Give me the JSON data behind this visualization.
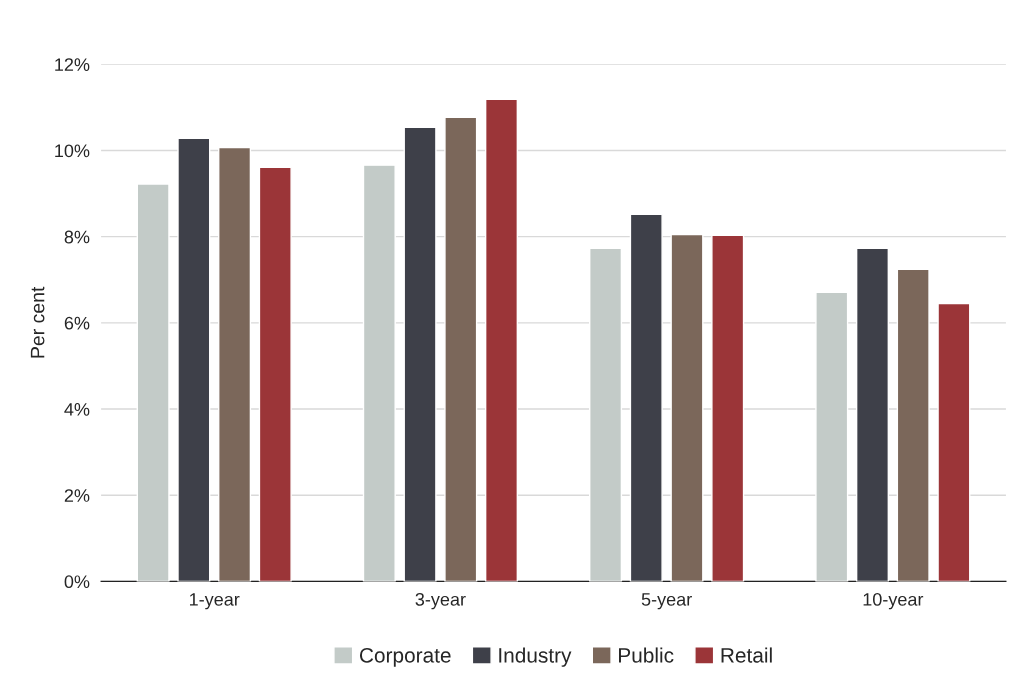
{
  "chart_data": {
    "type": "bar",
    "ylabel": "Per cent",
    "categories": [
      "1-year",
      "3-year",
      "5-year",
      "10-year"
    ],
    "series": [
      {
        "name": "Corporate",
        "color": "#c3cbc8",
        "values": [
          9.22,
          9.66,
          7.73,
          6.71
        ]
      },
      {
        "name": "Industry",
        "color": "#3e4049",
        "values": [
          10.28,
          10.54,
          8.52,
          7.73
        ]
      },
      {
        "name": "Public",
        "color": "#7b675a",
        "values": [
          10.07,
          10.77,
          8.05,
          7.24
        ]
      },
      {
        "name": "Retail",
        "color": "#9b3538",
        "values": [
          9.61,
          11.19,
          8.03,
          6.45
        ]
      }
    ],
    "ylim": [
      0,
      12
    ],
    "yticks": [
      {
        "value": 0,
        "label": "0%"
      },
      {
        "value": 2,
        "label": "2%"
      },
      {
        "value": 4,
        "label": "4%"
      },
      {
        "value": 6,
        "label": "6%"
      },
      {
        "value": 8,
        "label": "8%"
      },
      {
        "value": 10,
        "label": "10%"
      },
      {
        "value": 12,
        "label": "12%"
      }
    ],
    "grid": "y",
    "legend": "bottom"
  }
}
